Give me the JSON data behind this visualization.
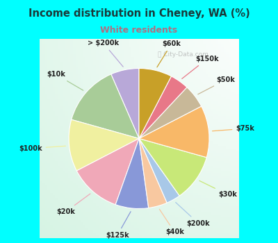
{
  "title": "Income distribution in Cheney, WA (%)",
  "subtitle": "White residents",
  "title_color": "#1a3a3a",
  "subtitle_color": "#b07080",
  "background_outer": "#00ffff",
  "background_inner_color1": "#ffffff",
  "background_inner_color2": "#c8e8d0",
  "labels": [
    "> $200k",
    "$10k",
    "$100k",
    "$20k",
    "$125k",
    "$40k",
    "$200k",
    "$30k",
    "$75k",
    "$50k",
    "$150k",
    "$60k"
  ],
  "values": [
    6,
    13,
    11,
    11,
    7,
    4,
    3,
    10,
    11,
    5,
    4,
    7
  ],
  "colors": [
    "#b8a8d8",
    "#a8cc98",
    "#f0f0a0",
    "#f0a8b8",
    "#8898d8",
    "#f8c8a0",
    "#a8c8e8",
    "#c8e878",
    "#f8b868",
    "#c8b898",
    "#e87888",
    "#c8a028"
  ],
  "startangle": 90,
  "wedge_edge_color": "#ffffff",
  "watermark": "City-Data.com"
}
